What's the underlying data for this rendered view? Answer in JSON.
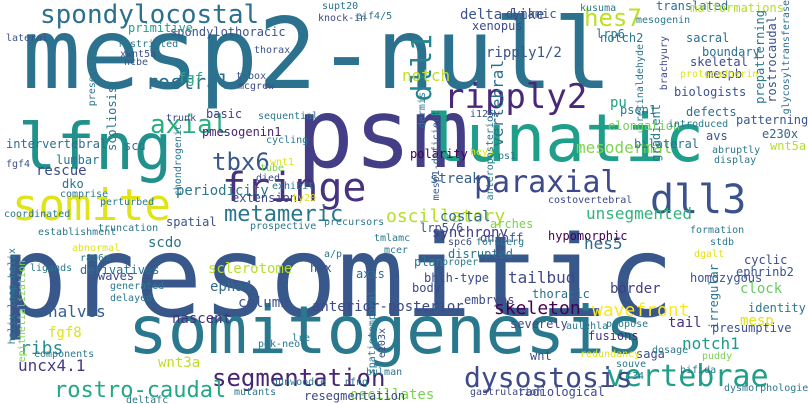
{
  "background": "#ffffff",
  "words": [
    {
      "text": "presomitic",
      "color": "#38588c"
    },
    {
      "text": "mesp2-null",
      "color": "#2c728e"
    },
    {
      "text": "psm",
      "color": "#433e85"
    },
    {
      "text": "somitogenesis",
      "color": "#2a788e"
    },
    {
      "text": "lfng",
      "color": "#21918c"
    },
    {
      "text": "lunatic",
      "color": "#1f9e89"
    },
    {
      "text": "somite",
      "color": "#dfe318"
    },
    {
      "text": "fringe",
      "color": "#46327e"
    },
    {
      "text": "dll3",
      "color": "#3b528b"
    },
    {
      "text": "ripply2",
      "color": "#482878"
    },
    {
      "text": "spondylocostal",
      "color": "#2d708e"
    },
    {
      "text": "paraxial",
      "color": "#3e4989"
    },
    {
      "text": "vertebrae",
      "color": "#1f9f88"
    },
    {
      "text": "dysostosis",
      "color": "#3e4a89"
    },
    {
      "text": "segmentation",
      "color": "#482475"
    },
    {
      "text": "rostro-caudal",
      "color": "#22a884"
    },
    {
      "text": "hes7",
      "color": "#bddf26"
    },
    {
      "text": "dll1",
      "color": "#25848e"
    },
    {
      "text": "axial",
      "color": "#29af7f"
    },
    {
      "text": "tbx6",
      "color": "#38588c"
    },
    {
      "text": "metameric",
      "color": "#2a768e"
    },
    {
      "text": "oscillatory",
      "color": "#b5de2b"
    },
    {
      "text": "notch",
      "color": "#c2df23"
    },
    {
      "text": "ripply1/2",
      "color": "#3b528b"
    },
    {
      "text": "rostral",
      "color": "#2d708e"
    },
    {
      "text": "vertebral",
      "color": "#2c728e"
    },
    {
      "text": "mesodermal",
      "color": "#7fd34e"
    },
    {
      "text": "hes5",
      "color": "#31688e"
    },
    {
      "text": "unsegmented",
      "color": "#2fb47c"
    },
    {
      "text": "tailbud",
      "color": "#3e4989"
    },
    {
      "text": "skeleton",
      "color": "#440154"
    },
    {
      "text": "wavefront",
      "color": "#fde725"
    },
    {
      "text": "column",
      "color": "#3b528b"
    },
    {
      "text": "halves",
      "color": "#355f8d"
    },
    {
      "text": "ribs",
      "color": "#21918c"
    },
    {
      "text": "uncx4.1",
      "color": "#443a83"
    },
    {
      "text": "fgf8",
      "color": "#dde318"
    },
    {
      "text": "wnt3a",
      "color": "#bddf26"
    },
    {
      "text": "notch1",
      "color": "#1f9a8a"
    },
    {
      "text": "oscillates",
      "color": "#7ad151"
    },
    {
      "text": "delta-like",
      "color": "#3b528b"
    },
    {
      "text": "pmesogenin1",
      "color": "#481f70"
    },
    {
      "text": "periodicity",
      "color": "#2a788e"
    },
    {
      "text": "scdo",
      "color": "#2c728e"
    },
    {
      "text": "sclerotome",
      "color": "#b5de2b"
    },
    {
      "text": "epha4",
      "color": "#31688e"
    },
    {
      "text": "anterior-posterior",
      "color": "#3e4989"
    },
    {
      "text": "streak",
      "color": "#355f8d"
    },
    {
      "text": "border",
      "color": "#433e85"
    },
    {
      "text": "clock",
      "color": "#65cb5e"
    },
    {
      "text": "mesp",
      "color": "#dfe318"
    },
    {
      "text": "spondylothoracic",
      "color": "#3b528b"
    },
    {
      "text": "fgf",
      "color": "#22a884"
    },
    {
      "text": "psen1",
      "color": "#2a788e"
    },
    {
      "text": "pu",
      "color": "#1fa187"
    },
    {
      "text": "polarity",
      "color": "#440154"
    },
    {
      "text": "synchrony",
      "color": "#443983"
    },
    {
      "text": "fusions",
      "color": "#46307e"
    },
    {
      "text": "tail",
      "color": "#46307e"
    },
    {
      "text": "nascent",
      "color": "#472d7b"
    },
    {
      "text": "rescue",
      "color": "#3e4989"
    },
    {
      "text": "dko",
      "color": "#2c728e"
    },
    {
      "text": "lumbar",
      "color": "#2a788e"
    },
    {
      "text": "intervertebral",
      "color": "#2e6e8e"
    },
    {
      "text": "scd",
      "color": "#2c728e"
    },
    {
      "text": "basic",
      "color": "#433e85"
    },
    {
      "text": "extension",
      "color": "#3e4989"
    },
    {
      "text": "costal",
      "color": "#2e6e8e"
    },
    {
      "text": "hypomorphic",
      "color": "#440154"
    },
    {
      "text": "on/off",
      "color": "#3b528b"
    },
    {
      "text": "arches",
      "color": "#7ad151"
    },
    {
      "text": "lrp5/6",
      "color": "#3b528b"
    },
    {
      "text": "trunk",
      "color": "#3e4989"
    },
    {
      "text": "skeletal",
      "color": "#3e4989"
    },
    {
      "text": "boundary",
      "color": "#2d708e"
    },
    {
      "text": "mespb",
      "color": "#3e4989"
    },
    {
      "text": "sacral",
      "color": "#2e6e8e"
    },
    {
      "text": "gradient",
      "color": "#2a788e"
    },
    {
      "text": "elongation",
      "color": "#6ece58"
    },
    {
      "text": "primitive",
      "color": "#1fa187"
    },
    {
      "text": "scoliosis",
      "color": "#2c728e"
    },
    {
      "text": "xenopus",
      "color": "#3e4989"
    },
    {
      "text": "dynamic",
      "color": "#3b528b"
    },
    {
      "text": "translated",
      "color": "#2e6e8e"
    },
    {
      "text": "malformations",
      "color": "#b5de2b"
    },
    {
      "text": "lrp6",
      "color": "#2a788e"
    },
    {
      "text": "notch2",
      "color": "#2a788e"
    },
    {
      "text": "biologists",
      "color": "#3b528b"
    },
    {
      "text": "defects",
      "color": "#2e6e8e"
    },
    {
      "text": "patterning",
      "color": "#38588c"
    },
    {
      "text": "bilateral",
      "color": "#2c728e"
    },
    {
      "text": "prepatterning",
      "color": "#2a788e"
    },
    {
      "text": "rostrocaudal",
      "color": "#3b528b"
    },
    {
      "text": "glycosyltransferase",
      "color": "#2e6e8e"
    },
    {
      "text": "wnt5a",
      "color": "#b5de2b"
    },
    {
      "text": "e230x",
      "color": "#31688e"
    },
    {
      "text": "avs",
      "color": "#3b528b"
    },
    {
      "text": "hey3",
      "color": "#dfe318"
    },
    {
      "text": "ps1",
      "color": "#2c728e"
    },
    {
      "text": "abruptly",
      "color": "#2a788e"
    },
    {
      "text": "display",
      "color": "#2a788e"
    },
    {
      "text": "introduced",
      "color": "#2a788e"
    },
    {
      "text": "i125v",
      "color": "#3e4989"
    },
    {
      "text": "cycling",
      "color": "#2a788e"
    },
    {
      "text": "sequential",
      "color": "#2a788e"
    },
    {
      "text": "chondrogenic",
      "color": "#2a788e"
    },
    {
      "text": "mcgrew",
      "color": "#3e4989"
    },
    {
      "text": "t-box",
      "color": "#3b528b"
    },
    {
      "text": "thorax",
      "color": "#3b528b"
    },
    {
      "text": "knock-in",
      "color": "#3e4989"
    },
    {
      "text": "supt20",
      "color": "#2c728e"
    },
    {
      "text": "eif4/5",
      "color": "#2c728e"
    },
    {
      "text": "restricted",
      "color": "#2a788e"
    },
    {
      "text": "xwnt5a",
      "color": "#3b528b"
    },
    {
      "text": "ncbe",
      "color": "#3b528b"
    },
    {
      "text": "presenilin",
      "color": "#2a788e"
    },
    {
      "text": "lateral",
      "color": "#3b528b"
    },
    {
      "text": "kusuma",
      "color": "#2a788e"
    },
    {
      "text": "mesogenin",
      "color": "#2a788e"
    },
    {
      "text": "brachyury",
      "color": "#3e4989"
    },
    {
      "text": "protocadherin",
      "color": "#dfe318"
    },
    {
      "text": "retinaldehyde",
      "color": "#2a788e"
    },
    {
      "text": "dermis",
      "color": "#2a788e"
    },
    {
      "text": "anteroposterior",
      "color": "#2a788e"
    },
    {
      "text": "mesp1-deficient",
      "color": "#38588c"
    },
    {
      "text": "fgf4",
      "color": "#3b528b"
    },
    {
      "text": "comprise",
      "color": "#2a788e"
    },
    {
      "text": "perturbed",
      "color": "#2a788e"
    },
    {
      "text": "tube",
      "color": "#7ad151"
    },
    {
      "text": "died",
      "color": "#3e4989"
    },
    {
      "text": "exhibit",
      "color": "#2a788e"
    },
    {
      "text": "ty20",
      "color": "#dfe318"
    },
    {
      "text": "wnt1",
      "color": "#dfe318"
    },
    {
      "text": "coordinated",
      "color": "#2a788e"
    },
    {
      "text": "establishment",
      "color": "#2a788e"
    },
    {
      "text": "truncation",
      "color": "#2a788e"
    },
    {
      "text": "spatial",
      "color": "#3b528b"
    },
    {
      "text": "prospective",
      "color": "#2a788e"
    },
    {
      "text": "precursors",
      "color": "#2a788e"
    },
    {
      "text": "tmlamc",
      "color": "#2a788e"
    },
    {
      "text": "mcer",
      "color": "#2a788e"
    },
    {
      "text": "forsberg",
      "color": "#2a788e"
    },
    {
      "text": "spc6",
      "color": "#3e4989"
    },
    {
      "text": "costovertebral",
      "color": "#3e4989"
    },
    {
      "text": "formation",
      "color": "#2a788e"
    },
    {
      "text": "stdb",
      "color": "#2a788e"
    },
    {
      "text": "dgalt",
      "color": "#dfe318"
    },
    {
      "text": "proper",
      "color": "#2a788e"
    },
    {
      "text": "bhlh-type",
      "color": "#3e4989"
    },
    {
      "text": "thoracic",
      "color": "#2e6e8e"
    },
    {
      "text": "embryos",
      "color": "#3e4989"
    },
    {
      "text": "disrupted",
      "color": "#2c728e"
    },
    {
      "text": "plan",
      "color": "#2a788e"
    },
    {
      "text": "ligands",
      "color": "#2a788e"
    },
    {
      "text": "helix-loop-helix",
      "color": "#2a788e"
    },
    {
      "text": "epithelialization",
      "color": "#7ad151"
    },
    {
      "text": "abnormal",
      "color": "#dfe318"
    },
    {
      "text": "r806m",
      "color": "#2a788e"
    },
    {
      "text": "derivatives",
      "color": "#2c728e"
    },
    {
      "text": "waves",
      "color": "#3e4989"
    },
    {
      "text": "generated",
      "color": "#2a788e"
    },
    {
      "text": "delayed",
      "color": "#2a788e"
    },
    {
      "text": "hox",
      "color": "#3b528b"
    },
    {
      "text": "a/p",
      "color": "#2a788e"
    },
    {
      "text": "axis",
      "color": "#2e6e8e"
    },
    {
      "text": "body",
      "color": "#3e4989"
    },
    {
      "text": "spatiotemporal",
      "color": "#2a788e"
    },
    {
      "text": "homozygous",
      "color": "#3b528b"
    },
    {
      "text": "irregular",
      "color": "#2a788e"
    },
    {
      "text": "aulehla",
      "color": "#2a788e"
    },
    {
      "text": "cyclic",
      "color": "#3e4989"
    },
    {
      "text": "ephrinb2",
      "color": "#3b528b"
    },
    {
      "text": "identity",
      "color": "#2a788e"
    },
    {
      "text": "presumptive",
      "color": "#3b528b"
    },
    {
      "text": "saga",
      "color": "#3e4989"
    },
    {
      "text": "severely",
      "color": "#3e4989"
    },
    {
      "text": "components",
      "color": "#2a788e"
    },
    {
      "text": "mutants",
      "color": "#2a788e"
    },
    {
      "text": "pgk-neo",
      "color": "#2a788e"
    },
    {
      "text": "lre",
      "color": "#2a788e"
    },
    {
      "text": "e103x",
      "color": "#3e4989"
    },
    {
      "text": "propose",
      "color": "#2a788e"
    },
    {
      "text": "redundancy",
      "color": "#dfe318"
    },
    {
      "text": "souve",
      "color": "#2a788e"
    },
    {
      "text": "dosage",
      "color": "#2a788e"
    },
    {
      "text": "f34",
      "color": "#2a788e"
    },
    {
      "text": "puddy",
      "color": "#7ad151"
    },
    {
      "text": "bifida",
      "color": "#2a788e"
    },
    {
      "text": "wnt",
      "color": "#3e4989"
    },
    {
      "text": "deltafc",
      "color": "#2a788e"
    },
    {
      "text": "dunwoodie",
      "color": "#2a788e"
    },
    {
      "text": "rfng",
      "color": "#2a788e"
    },
    {
      "text": "resegmentation",
      "color": "#3e4989"
    },
    {
      "text": "bulman",
      "color": "#2a788e"
    },
    {
      "text": "gastrulation",
      "color": "#3e4989"
    },
    {
      "text": "radiological",
      "color": "#3e4989"
    },
    {
      "text": "dysmorphologies",
      "color": "#2a788e"
    }
  ]
}
